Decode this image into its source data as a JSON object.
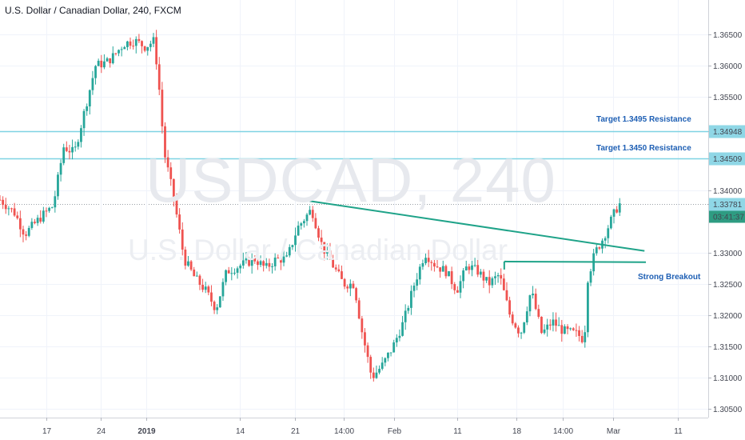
{
  "header": {
    "title": "U.S. Dollar / Canadian Dollar, 240, FXCM"
  },
  "watermark": {
    "symbol": "USDCAD, 240",
    "name": "U.S. Dollar / Canadian Dollar"
  },
  "annotations": {
    "target_1": "Target 1.3495 Resistance",
    "target_2": "Target 1.3450 Resistance",
    "breakout": "Strong Breakout"
  },
  "colors": {
    "up": "#26a69a",
    "down": "#ef5350",
    "level_line": "#7fd3e3",
    "trendline": "#1fa389",
    "price_tag": "#8fd7e6",
    "countdown_tag": "#2e9c82",
    "annotation_text": "#1e5fb4"
  },
  "chart_data": {
    "type": "candlestick",
    "title": "U.S. Dollar / Canadian Dollar, 240, FXCM",
    "y_ticks": [
      "1.36500",
      "1.36000",
      "1.35500",
      "1.34948",
      "1.34509",
      "1.34000",
      "1.33781",
      "1.33000",
      "1.32500",
      "1.32000",
      "1.31500",
      "1.31000",
      "1.30500"
    ],
    "y_tick_values": [
      1.365,
      1.36,
      1.355,
      1.34948,
      1.34509,
      1.34,
      1.33781,
      1.33,
      1.325,
      1.32,
      1.315,
      1.31,
      1.305
    ],
    "ylim": [
      1.3036,
      1.3705
    ],
    "x_ticks": [
      "17",
      "24",
      "2019",
      "14",
      "21",
      "14:00",
      "Feb",
      "11",
      "18",
      "14:00",
      "Mar",
      "11"
    ],
    "x_tick_years": [
      "2019"
    ],
    "horizontal_levels": [
      {
        "value": 1.34948,
        "label": "Target 1.3495 Resistance"
      },
      {
        "value": 1.34509,
        "label": "Target 1.3450 Resistance"
      }
    ],
    "last_price": 1.33781,
    "countdown": "03:41:37",
    "trendlines": [
      {
        "name": "descending",
        "points": [
          [
            0.437,
            1.3383
          ],
          [
            0.91,
            1.3303
          ]
        ]
      },
      {
        "name": "breakout",
        "points": [
          [
            0.712,
            1.3286
          ],
          [
            0.912,
            1.3285
          ]
        ]
      }
    ],
    "breakout_label": "Strong Breakout",
    "series_path": [
      [
        0,
        1.3385
      ],
      [
        0.02,
        1.3365
      ],
      [
        0.035,
        1.333
      ],
      [
        0.06,
        1.336
      ],
      [
        0.075,
        1.3375
      ],
      [
        0.09,
        1.347
      ],
      [
        0.105,
        1.346
      ],
      [
        0.12,
        1.353
      ],
      [
        0.135,
        1.36
      ],
      [
        0.15,
        1.3605
      ],
      [
        0.16,
        1.3615
      ],
      [
        0.175,
        1.3635
      ],
      [
        0.19,
        1.364
      ],
      [
        0.205,
        1.363
      ],
      [
        0.218,
        1.364
      ],
      [
        0.225,
        1.356
      ],
      [
        0.232,
        1.346
      ],
      [
        0.245,
        1.339
      ],
      [
        0.26,
        1.329
      ],
      [
        0.275,
        1.326
      ],
      [
        0.29,
        1.324
      ],
      [
        0.305,
        1.321
      ],
      [
        0.32,
        1.327
      ],
      [
        0.34,
        1.328
      ],
      [
        0.36,
        1.329
      ],
      [
        0.375,
        1.3275
      ],
      [
        0.39,
        1.329
      ],
      [
        0.405,
        1.329
      ],
      [
        0.42,
        1.334
      ],
      [
        0.44,
        1.337
      ],
      [
        0.455,
        1.331
      ],
      [
        0.47,
        1.328
      ],
      [
        0.485,
        1.325
      ],
      [
        0.5,
        1.325
      ],
      [
        0.51,
        1.318
      ],
      [
        0.525,
        1.31
      ],
      [
        0.54,
        1.312
      ],
      [
        0.555,
        1.315
      ],
      [
        0.57,
        1.319
      ],
      [
        0.585,
        1.325
      ],
      [
        0.6,
        1.33
      ],
      [
        0.615,
        1.328
      ],
      [
        0.63,
        1.327
      ],
      [
        0.645,
        1.324
      ],
      [
        0.66,
        1.328
      ],
      [
        0.675,
        1.327
      ],
      [
        0.69,
        1.325
      ],
      [
        0.705,
        1.3265
      ],
      [
        0.72,
        1.32
      ],
      [
        0.735,
        1.317
      ],
      [
        0.75,
        1.324
      ],
      [
        0.765,
        1.317
      ],
      [
        0.78,
        1.319
      ],
      [
        0.795,
        1.3175
      ],
      [
        0.815,
        1.317
      ],
      [
        0.825,
        1.316
      ],
      [
        0.83,
        1.326
      ],
      [
        0.84,
        1.33
      ],
      [
        0.85,
        1.332
      ],
      [
        0.86,
        1.3345
      ],
      [
        0.87,
        1.337
      ],
      [
        0.875,
        1.3378
      ]
    ]
  }
}
